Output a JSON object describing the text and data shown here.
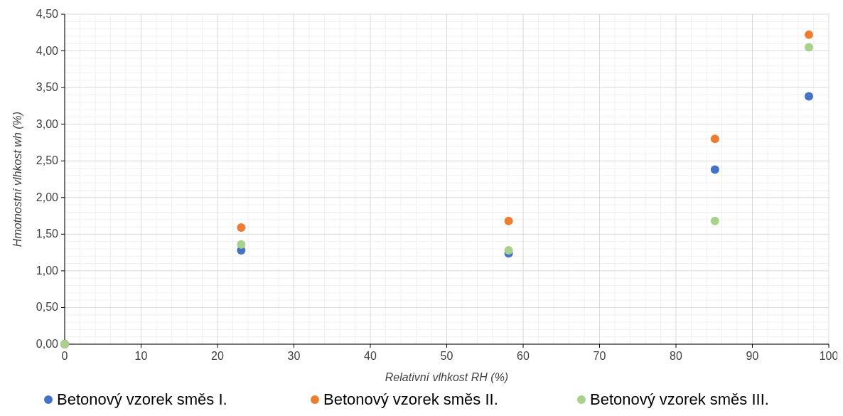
{
  "chart_data": {
    "type": "scatter",
    "xlabel": "Relativní vlhkost RH (%)",
    "ylabel": "Hmotnostní vlhkost wh (%)",
    "xlim": [
      0,
      100
    ],
    "xticks": [
      0,
      10,
      20,
      30,
      40,
      50,
      60,
      70,
      80,
      90,
      100
    ],
    "ylim": [
      0,
      4.5
    ],
    "yticks": [
      {
        "value": 0,
        "label": "0,00"
      },
      {
        "value": 0.5,
        "label": "0,50"
      },
      {
        "value": 1,
        "label": "1,00"
      },
      {
        "value": 1.5,
        "label": "1,50"
      },
      {
        "value": 2,
        "label": "2,00"
      },
      {
        "value": 2.5,
        "label": "2,50"
      },
      {
        "value": 3,
        "label": "3,00"
      },
      {
        "value": 3.5,
        "label": "3,50"
      },
      {
        "value": 4,
        "label": "4,00"
      },
      {
        "value": 4.5,
        "label": "4,50"
      }
    ],
    "grid": true,
    "legend": "bottom",
    "marker": "circle",
    "series": [
      {
        "name": "Betonový vzorek směs I.",
        "color": "#4472c4",
        "x": [
          0,
          23.1,
          58.1,
          85.1,
          97.4
        ],
        "values": [
          0,
          1.28,
          1.24,
          2.38,
          3.38
        ]
      },
      {
        "name": "Betonový vzorek směs II.",
        "color": "#ed7d31",
        "x": [
          0,
          23.1,
          58.1,
          85.1,
          97.4
        ],
        "values": [
          0,
          1.59,
          1.68,
          2.8,
          4.22
        ]
      },
      {
        "name": "Betonový vzorek směs III.",
        "color": "#a9d18e",
        "x": [
          0,
          23.1,
          58.1,
          85.1,
          97.4
        ],
        "values": [
          0,
          1.36,
          1.28,
          1.68,
          4.05
        ]
      }
    ]
  }
}
